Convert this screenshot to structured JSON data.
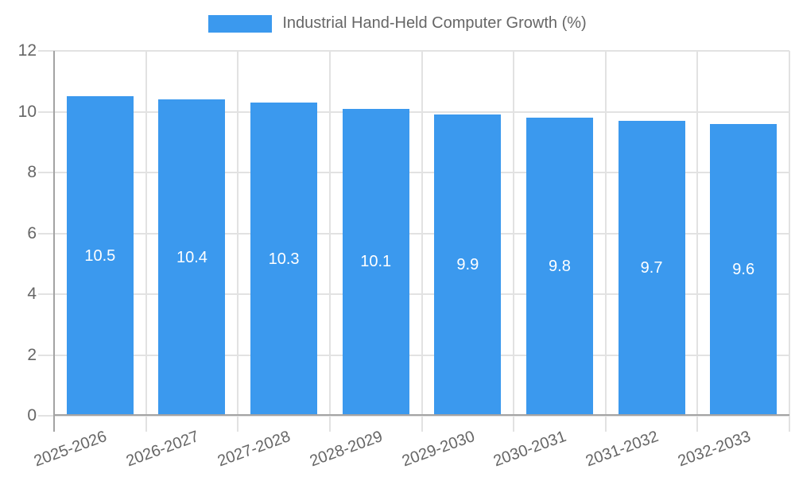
{
  "chart_data": {
    "type": "bar",
    "title": "Industrial Hand-Held Computer Growth (%)",
    "categories": [
      "2025-2026",
      "2026-2027",
      "2027-2028",
      "2028-2029",
      "2029-2030",
      "2030-2031",
      "2031-2032",
      "2032-2033"
    ],
    "values": [
      10.5,
      10.4,
      10.3,
      10.1,
      9.9,
      9.8,
      9.7,
      9.6
    ],
    "value_labels": [
      "10.5",
      "10.4",
      "10.3",
      "10.1",
      "9.9",
      "9.8",
      "9.7",
      "9.6"
    ],
    "xlabel": "",
    "ylabel": "",
    "ylim": [
      0,
      12
    ],
    "yticks": [
      0,
      2,
      4,
      6,
      8,
      10,
      12
    ],
    "grid": true,
    "legend_position": "top",
    "colors": {
      "bar": "#3B99EE",
      "grid": "#E2E2E2",
      "axis": "#A3A3A3",
      "tick_text": "#666666",
      "value_text": "#FFFFFF",
      "background": "#FFFFFF"
    }
  }
}
